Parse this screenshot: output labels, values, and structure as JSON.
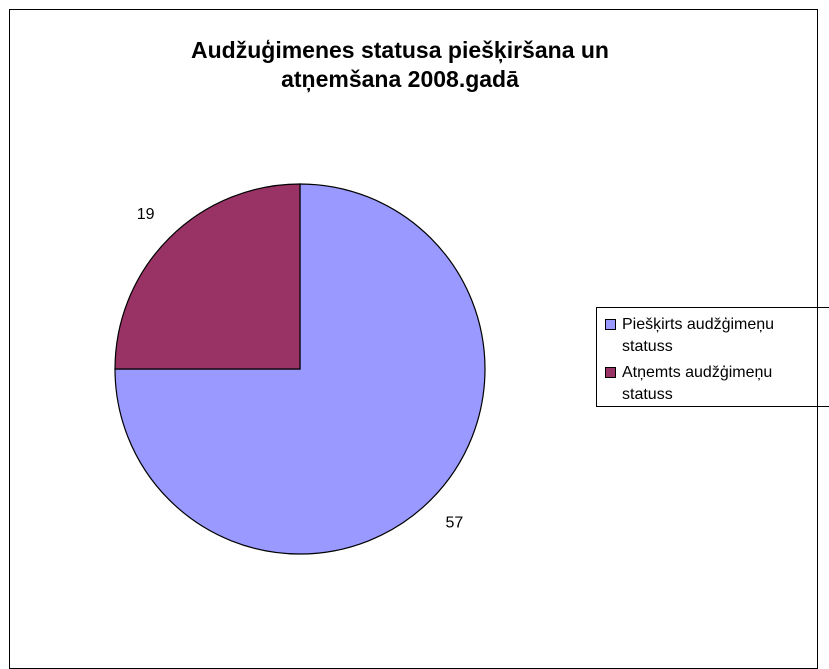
{
  "chart_data": {
    "type": "pie",
    "title": "Audžuģimenes statusa piešķiršana un atņemšana 2008.gadā",
    "categories": [
      "Piešķirts audžģimeņu statuss",
      "Atņemts audžģimeņu statuss"
    ],
    "values": [
      57,
      19
    ],
    "colors": [
      "#9999ff",
      "#993366"
    ],
    "legend": "right"
  }
}
